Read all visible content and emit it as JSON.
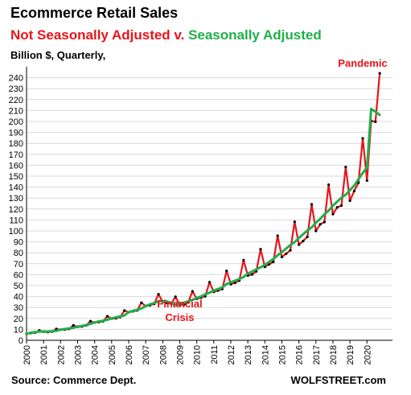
{
  "header": {
    "title": "Ecommerce Retail Sales",
    "subtitle_nsa": "Not Seasonally Adjusted",
    "subtitle_joiner": " v. ",
    "subtitle_sa": "Seasonally Adjusted",
    "units": "Billion $, Quarterly,"
  },
  "footer": {
    "source": "Source: Commerce Dept.",
    "brand": "WOLFSTREET.com"
  },
  "colors": {
    "nsa": "#e8141b",
    "sa": "#1fae4b",
    "grid": "#d9d9d9",
    "axis": "#000000"
  },
  "chart_data": {
    "type": "line",
    "title": "Ecommerce Retail Sales",
    "xlabel": "",
    "ylabel": "Billion $, Quarterly,",
    "ylim": [
      0,
      250
    ],
    "y_ticks": [
      0,
      10,
      20,
      30,
      40,
      50,
      60,
      70,
      80,
      90,
      100,
      110,
      120,
      130,
      140,
      150,
      160,
      170,
      180,
      190,
      200,
      210,
      220,
      230,
      240
    ],
    "x_tick_labels": [
      "2000",
      "2001",
      "2002",
      "2003",
      "2004",
      "2005",
      "2006",
      "2007",
      "2008",
      "2009",
      "2010",
      "2011",
      "2012",
      "2013",
      "2014",
      "2015",
      "2016",
      "2017",
      "2018",
      "2019",
      "2020"
    ],
    "grid": true,
    "legend": "none (series named in subtitle)",
    "x_start_year": 2000,
    "quarters_per_year": 4,
    "annotations": [
      {
        "text_lines": [
          "Financial",
          "Crisis"
        ],
        "x": 2009.0,
        "y": 30
      },
      {
        "text_lines": [
          "Pandemic"
        ],
        "x": 2019.75,
        "y": 250
      }
    ],
    "series": [
      {
        "name": "Not Seasonally Adjusted",
        "color": "#e8141b",
        "values": [
          5.8,
          6.6,
          7.0,
          9.0,
          7.8,
          7.5,
          7.9,
          10.4,
          9.7,
          9.8,
          10.4,
          13.7,
          12.3,
          12.6,
          13.6,
          17.5,
          16.2,
          16.6,
          17.4,
          22.0,
          19.8,
          20.1,
          21.2,
          27.2,
          25.6,
          26.5,
          27.3,
          34.4,
          31.3,
          32.0,
          33.3,
          42.1,
          35.2,
          34.1,
          33.5,
          39.8,
          32.2,
          32.5,
          34.7,
          44.8,
          37.9,
          39.0,
          40.3,
          53.1,
          44.3,
          45.5,
          46.9,
          63.4,
          51.3,
          52.6,
          54.6,
          73.3,
          59.2,
          60.2,
          63.0,
          83.3,
          67.1,
          69.4,
          71.7,
          95.6,
          76.1,
          79.1,
          82.3,
          108.4,
          87.4,
          90.7,
          94.6,
          124.3,
          100.0,
          106.0,
          108.1,
          142.2,
          115.3,
          121.5,
          123.1,
          158.4,
          127.6,
          136.5,
          144.0,
          184.6,
          146.0,
          200.6,
          199.7,
          244.0
        ]
      },
      {
        "name": "Seasonally Adjusted",
        "color": "#1fae4b",
        "values": [
          5.8,
          7.0,
          7.4,
          8.0,
          8.1,
          8.0,
          8.3,
          8.6,
          9.8,
          10.3,
          10.9,
          11.4,
          12.6,
          13.1,
          14.0,
          14.9,
          16.3,
          17.3,
          17.9,
          18.8,
          20.1,
          21.0,
          21.8,
          22.7,
          25.7,
          27.0,
          27.9,
          29.1,
          31.4,
          32.8,
          34.1,
          35.6,
          35.9,
          35.5,
          34.2,
          32.5,
          33.5,
          34.4,
          35.6,
          37.0,
          38.6,
          40.1,
          42.0,
          43.6,
          45.4,
          46.9,
          48.3,
          51.4,
          53.0,
          54.5,
          56.1,
          57.8,
          61.1,
          62.8,
          64.9,
          66.7,
          69.0,
          71.6,
          74.4,
          77.7,
          80.6,
          83.8,
          87.0,
          89.8,
          93.5,
          97.0,
          100.4,
          103.2,
          107.4,
          111.0,
          115.1,
          118.5,
          123.1,
          126.7,
          130.4,
          133.1,
          137.2,
          141.4,
          147.1,
          153.0,
          158.0,
          211.5,
          209.0,
          206.0
        ]
      }
    ]
  }
}
